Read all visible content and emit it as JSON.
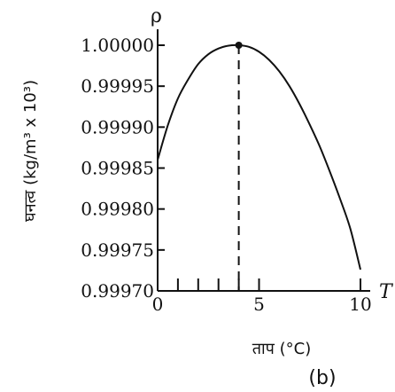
{
  "chart_data": {
    "type": "line",
    "x_symbol": "T",
    "y_symbol": "ρ",
    "xlabel": "ताप (°C)",
    "ylabel": "घनत्व (kg/m³ x 10³)",
    "panel_label": "(b)",
    "xlim": [
      0,
      10
    ],
    "ylim": [
      0.9997,
      1.0
    ],
    "x_tick_labels": [
      {
        "value": 0,
        "label": "0"
      },
      {
        "value": 5,
        "label": "5"
      },
      {
        "value": 10,
        "label": "10"
      }
    ],
    "x_minor_ticks": [
      1,
      2,
      3,
      4
    ],
    "y_ticks": [
      {
        "value": 1.0,
        "label": "1.00000"
      },
      {
        "value": 0.99995,
        "label": "0.99995"
      },
      {
        "value": 0.9999,
        "label": "0.99990"
      },
      {
        "value": 0.99985,
        "label": "0.99985"
      },
      {
        "value": 0.9998,
        "label": "0.99980"
      },
      {
        "value": 0.99975,
        "label": "0.99975"
      },
      {
        "value": 0.9997,
        "label": "0.99970"
      }
    ],
    "series": [
      {
        "x": [
          0,
          0.5,
          1,
          1.5,
          2,
          2.5,
          3,
          3.5,
          4,
          4.5,
          5,
          5.5,
          6,
          6.5,
          7,
          7.5,
          8,
          8.5,
          9,
          9.5,
          10
        ],
        "values": [
          0.99986,
          0.999902,
          0.999935,
          0.999958,
          0.999977,
          0.999989,
          0.999996,
          0.9999995,
          1.0,
          0.999998,
          0.999992,
          0.999982,
          0.999968,
          0.99995,
          0.999928,
          0.999903,
          0.999876,
          0.999845,
          0.999812,
          0.999776,
          0.999726
        ]
      }
    ],
    "maximum_point": {
      "x": 4,
      "y": 1.0
    },
    "grid": false
  }
}
